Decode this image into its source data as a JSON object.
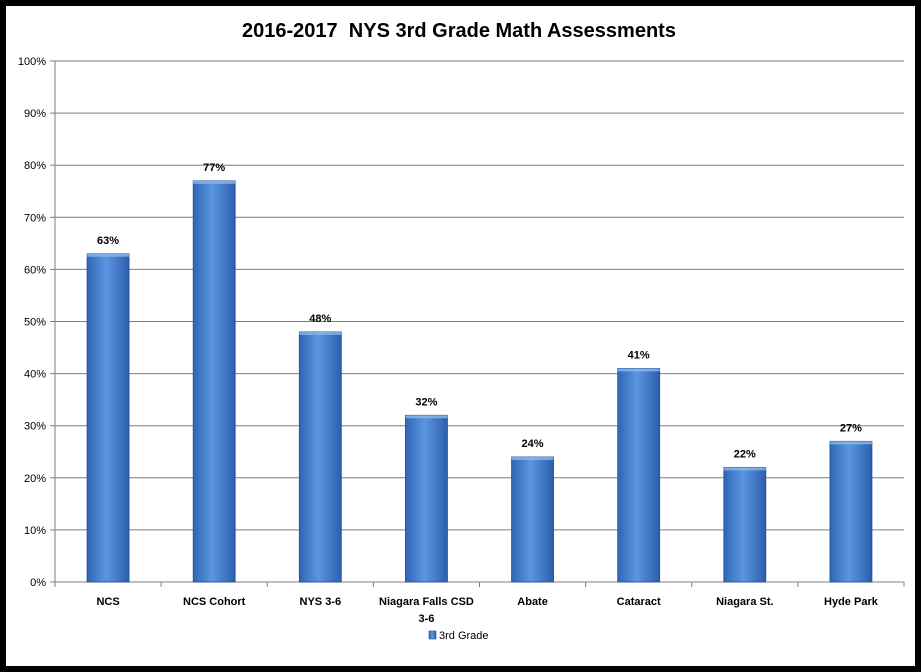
{
  "chart_data": {
    "type": "bar",
    "title": "2016-2017  NYS 3rd Grade Math Assessments",
    "categories": [
      [
        "NCS"
      ],
      [
        "NCS Cohort"
      ],
      [
        "NYS 3-6"
      ],
      [
        "Niagara Falls CSD",
        "3-6"
      ],
      [
        "Abate"
      ],
      [
        "Cataract"
      ],
      [
        "Niagara St."
      ],
      [
        "Hyde Park"
      ]
    ],
    "series": [
      {
        "name": "3rd Grade",
        "values": [
          63,
          77,
          48,
          32,
          24,
          41,
          22,
          27
        ]
      }
    ],
    "data_labels": [
      "63%",
      "77%",
      "48%",
      "32%",
      "24%",
      "41%",
      "22%",
      "27%"
    ],
    "y_ticks": [
      "0%",
      "10%",
      "20%",
      "30%",
      "40%",
      "50%",
      "60%",
      "70%",
      "80%",
      "90%",
      "100%"
    ],
    "ylim": [
      0,
      100
    ],
    "grid": true,
    "legend_position": "bottom",
    "colors": {
      "bar_light": "#5a95de",
      "bar_dark": "#2e64b4",
      "bar_edge": "#1f4f96",
      "grid": "#7f7f7f"
    }
  }
}
